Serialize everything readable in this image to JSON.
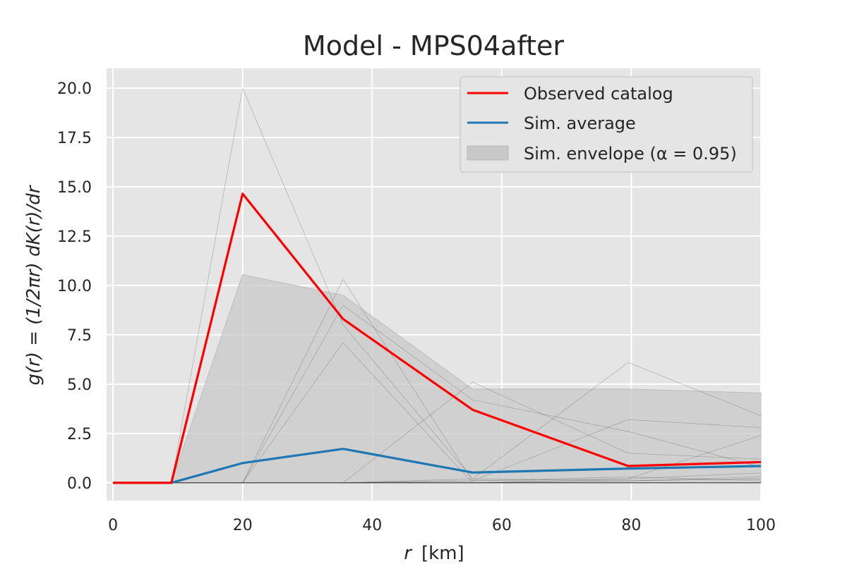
{
  "chart_data": {
    "type": "line",
    "title": "Model - MPS04after",
    "xlabel_italic": "r",
    "xlabel_unit": "[km]",
    "ylabel": "g(r) = (1/2πr) dK(r)/dr",
    "xlim": [
      -1,
      100
    ],
    "ylim": [
      -0.9,
      21
    ],
    "x_ticks": [
      "0",
      "20",
      "40",
      "60",
      "80",
      "100"
    ],
    "x_tick_values": [
      0,
      20,
      40,
      60,
      80,
      100
    ],
    "y_ticks": [
      "0.0",
      "2.5",
      "5.0",
      "7.5",
      "10.0",
      "12.5",
      "15.0",
      "17.5",
      "20.0"
    ],
    "y_tick_values": [
      0,
      2.5,
      5,
      7.5,
      10,
      12.5,
      15,
      17.5,
      20
    ],
    "grid": true,
    "legend_position": "top-right",
    "series": [
      {
        "name": "Observed catalog",
        "color": "#ff0000",
        "x": [
          0,
          9,
          20,
          35.5,
          55.5,
          79.5,
          100
        ],
        "y": [
          0,
          0,
          14.65,
          8.3,
          3.7,
          0.85,
          1.05
        ]
      },
      {
        "name": "Sim. average",
        "color": "#1f77b4",
        "x": [
          0,
          9,
          20,
          35.5,
          55.5,
          79.5,
          100
        ],
        "y": [
          0,
          0,
          1.0,
          1.72,
          0.52,
          0.72,
          0.85
        ]
      }
    ],
    "envelope": {
      "name": "Sim. envelope (α = 0.95)",
      "color": "#c8c8c8",
      "x": [
        0,
        9,
        20,
        35.5,
        55.5,
        79.5,
        100
      ],
      "lower": [
        0,
        0,
        0,
        0,
        0,
        0,
        0
      ],
      "upper": [
        0,
        0,
        10.55,
        9.5,
        4.75,
        4.75,
        4.55
      ]
    },
    "simulations": [
      {
        "x": [
          0,
          9,
          20,
          35.5,
          55.5,
          79.5,
          100
        ],
        "y": [
          0,
          0,
          20.0,
          8.0,
          0.2,
          0.1,
          0.3
        ]
      },
      {
        "x": [
          0,
          9,
          20,
          35.5,
          55.5,
          79.5,
          100
        ],
        "y": [
          0,
          0,
          0,
          10.3,
          0.1,
          0.2,
          0.5
        ]
      },
      {
        "x": [
          0,
          9,
          20,
          35.5,
          55.5,
          79.5,
          100
        ],
        "y": [
          0,
          0,
          0,
          7.1,
          0,
          0.1,
          0.2
        ]
      },
      {
        "x": [
          0,
          9,
          20,
          35.5,
          55.5,
          79.5,
          100
        ],
        "y": [
          0,
          0,
          0,
          0,
          5.1,
          1.5,
          1.2
        ]
      },
      {
        "x": [
          0,
          9,
          20,
          35.5,
          55.5,
          79.5,
          100
        ],
        "y": [
          0,
          0,
          0,
          0,
          0.2,
          6.1,
          3.4
        ]
      },
      {
        "x": [
          0,
          9,
          20,
          35.5,
          55.5,
          79.5,
          100
        ],
        "y": [
          0,
          0,
          0,
          9.0,
          4.2,
          2.6,
          0.8
        ]
      },
      {
        "x": [
          0,
          9,
          20,
          35.5,
          55.5,
          79.5,
          100
        ],
        "y": [
          0,
          0,
          0,
          0,
          0.1,
          3.2,
          2.8
        ]
      },
      {
        "x": [
          0,
          9,
          20,
          35.5,
          55.5,
          79.5,
          100
        ],
        "y": [
          0,
          0,
          0,
          0,
          0,
          0.2,
          2.4
        ]
      },
      {
        "x": [
          0,
          9,
          20,
          35.5,
          55.5,
          79.5,
          100
        ],
        "y": [
          0,
          0,
          0,
          0,
          0.1,
          0.3,
          0.1
        ]
      },
      {
        "x": [
          0,
          9,
          20,
          35.5,
          55.5,
          79.5,
          100
        ],
        "y": [
          0,
          0,
          0,
          0,
          0,
          0.1,
          0.2
        ]
      }
    ]
  }
}
